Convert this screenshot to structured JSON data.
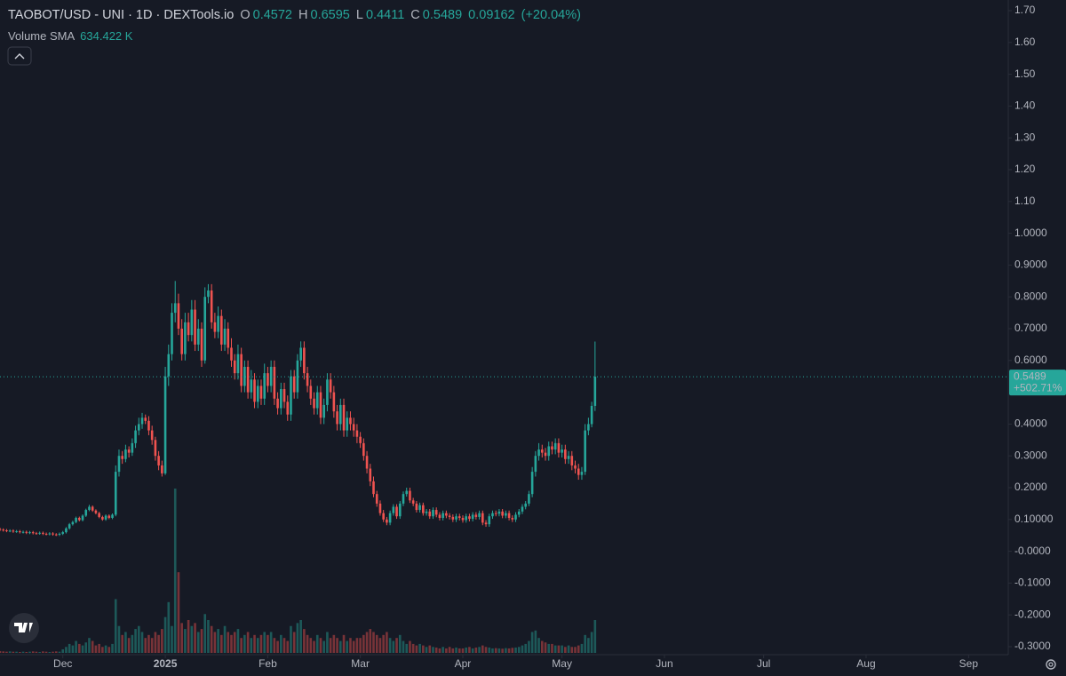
{
  "chart_data": {
    "type": "candlestick",
    "title": "TAOBOT/USD - UNI · 1D · DEXTools.io",
    "ohlc_labels": [
      "O",
      "H",
      "L",
      "C"
    ],
    "change": 0.09162,
    "change_label": "(+20.04%)",
    "volume_label": "Volume SMA",
    "volume_sma": "634.422 K",
    "price_change_label": "+502.71%",
    "up_color": "#26a69a",
    "down_color": "#ef5350",
    "xlim": [
      0,
      305
    ],
    "xticks": [
      {
        "value": 19,
        "label": "Dec"
      },
      {
        "value": 50,
        "label": "2025"
      },
      {
        "value": 81,
        "label": "Feb"
      },
      {
        "value": 109,
        "label": "Mar"
      },
      {
        "value": 140,
        "label": "Apr"
      },
      {
        "value": 170,
        "label": "May"
      },
      {
        "value": 201,
        "label": "Jun"
      },
      {
        "value": 231,
        "label": "Jul"
      },
      {
        "value": 262,
        "label": "Aug"
      },
      {
        "value": 293,
        "label": "Sep"
      }
    ],
    "ylim": [
      -0.3,
      1.7
    ],
    "yticks": [
      {
        "value": 1.7,
        "label": "1.70"
      },
      {
        "value": 1.6,
        "label": "1.60"
      },
      {
        "value": 1.5,
        "label": "1.50"
      },
      {
        "value": 1.4,
        "label": "1.40"
      },
      {
        "value": 1.3,
        "label": "1.30"
      },
      {
        "value": 1.2,
        "label": "1.20"
      },
      {
        "value": 1.1,
        "label": "1.10"
      },
      {
        "value": 1.0,
        "label": "1.0000"
      },
      {
        "value": 0.9,
        "label": "0.9000"
      },
      {
        "value": 0.8,
        "label": "0.8000"
      },
      {
        "value": 0.7,
        "label": "0.7000"
      },
      {
        "value": 0.6,
        "label": "0.6000"
      },
      {
        "value": 0.4,
        "label": "0.4000"
      },
      {
        "value": 0.3,
        "label": "0.3000"
      },
      {
        "value": 0.2,
        "label": "0.2000"
      },
      {
        "value": 0.1,
        "label": "0.10000"
      },
      {
        "value": 0,
        "label": "-0.0000"
      },
      {
        "value": -0.1,
        "label": "-0.1000"
      },
      {
        "value": -0.2,
        "label": "-0.2000"
      },
      {
        "value": -0.3,
        "label": "-0.3000"
      }
    ],
    "open": [
      0.07,
      0.068,
      0.066,
      0.064,
      0.065,
      0.062,
      0.063,
      0.06,
      0.061,
      0.058,
      0.06,
      0.057,
      0.056,
      0.058,
      0.055,
      0.054,
      0.056,
      0.053,
      0.052,
      0.055,
      0.06,
      0.072,
      0.085,
      0.092,
      0.105,
      0.098,
      0.112,
      0.13,
      0.14,
      0.128,
      0.12,
      0.108,
      0.1,
      0.112,
      0.105,
      0.115,
      0.25,
      0.3,
      0.29,
      0.32,
      0.31,
      0.34,
      0.38,
      0.4,
      0.42,
      0.41,
      0.38,
      0.35,
      0.3,
      0.27,
      0.245,
      0.55,
      0.62,
      0.75,
      0.78,
      0.7,
      0.62,
      0.72,
      0.68,
      0.76,
      0.65,
      0.7,
      0.6,
      0.8,
      0.82,
      0.72,
      0.69,
      0.74,
      0.65,
      0.7,
      0.64,
      0.6,
      0.56,
      0.62,
      0.52,
      0.58,
      0.5,
      0.54,
      0.47,
      0.52,
      0.48,
      0.56,
      0.52,
      0.58,
      0.48,
      0.45,
      0.51,
      0.47,
      0.43,
      0.55,
      0.5,
      0.6,
      0.64,
      0.56,
      0.52,
      0.48,
      0.45,
      0.5,
      0.42,
      0.46,
      0.54,
      0.5,
      0.44,
      0.4,
      0.46,
      0.38,
      0.42,
      0.4,
      0.38,
      0.36,
      0.34,
      0.3,
      0.26,
      0.22,
      0.18,
      0.15,
      0.12,
      0.1,
      0.09,
      0.12,
      0.14,
      0.11,
      0.15,
      0.18,
      0.19,
      0.16,
      0.15,
      0.13,
      0.145,
      0.12,
      0.125,
      0.11,
      0.13,
      0.115,
      0.105,
      0.12,
      0.112,
      0.108,
      0.1,
      0.11,
      0.105,
      0.098,
      0.11,
      0.102,
      0.115,
      0.108,
      0.12,
      0.09,
      0.085,
      0.11,
      0.12,
      0.118,
      0.125,
      0.112,
      0.12,
      0.105,
      0.1,
      0.115,
      0.125,
      0.14,
      0.15,
      0.18,
      0.25,
      0.3,
      0.32,
      0.31,
      0.3,
      0.33,
      0.32,
      0.34,
      0.31,
      0.32,
      0.29,
      0.3,
      0.27,
      0.26,
      0.24,
      0.25,
      0.38,
      0.4,
      0.4572
    ],
    "high": [
      0.074,
      0.072,
      0.07,
      0.069,
      0.069,
      0.067,
      0.067,
      0.065,
      0.065,
      0.064,
      0.064,
      0.061,
      0.062,
      0.062,
      0.059,
      0.06,
      0.06,
      0.057,
      0.059,
      0.064,
      0.076,
      0.089,
      0.096,
      0.109,
      0.109,
      0.116,
      0.134,
      0.146,
      0.144,
      0.132,
      0.124,
      0.112,
      0.116,
      0.116,
      0.119,
      0.27,
      0.32,
      0.315,
      0.335,
      0.33,
      0.355,
      0.395,
      0.42,
      0.435,
      0.43,
      0.425,
      0.395,
      0.36,
      0.315,
      0.285,
      0.58,
      0.65,
      0.78,
      0.85,
      0.81,
      0.73,
      0.75,
      0.75,
      0.79,
      0.79,
      0.73,
      0.72,
      0.83,
      0.84,
      0.84,
      0.75,
      0.77,
      0.76,
      0.73,
      0.72,
      0.67,
      0.62,
      0.65,
      0.64,
      0.6,
      0.6,
      0.57,
      0.56,
      0.54,
      0.54,
      0.59,
      0.58,
      0.6,
      0.6,
      0.5,
      0.53,
      0.53,
      0.49,
      0.57,
      0.57,
      0.62,
      0.66,
      0.66,
      0.58,
      0.54,
      0.5,
      0.52,
      0.52,
      0.48,
      0.56,
      0.56,
      0.52,
      0.46,
      0.48,
      0.48,
      0.44,
      0.44,
      0.42,
      0.4,
      0.375,
      0.355,
      0.315,
      0.275,
      0.235,
      0.19,
      0.16,
      0.13,
      0.108,
      0.128,
      0.148,
      0.148,
      0.158,
      0.188,
      0.2,
      0.2,
      0.168,
      0.158,
      0.153,
      0.153,
      0.133,
      0.133,
      0.138,
      0.138,
      0.123,
      0.128,
      0.128,
      0.12,
      0.116,
      0.118,
      0.118,
      0.113,
      0.118,
      0.118,
      0.123,
      0.123,
      0.128,
      0.128,
      0.098,
      0.118,
      0.128,
      0.128,
      0.133,
      0.133,
      0.128,
      0.128,
      0.113,
      0.123,
      0.133,
      0.148,
      0.158,
      0.19,
      0.265,
      0.315,
      0.34,
      0.335,
      0.325,
      0.345,
      0.345,
      0.355,
      0.355,
      0.335,
      0.335,
      0.315,
      0.315,
      0.285,
      0.275,
      0.265,
      0.4,
      0.42,
      0.47,
      0.6595
    ],
    "low": [
      0.064,
      0.062,
      0.06,
      0.06,
      0.058,
      0.058,
      0.056,
      0.056,
      0.054,
      0.054,
      0.053,
      0.052,
      0.052,
      0.051,
      0.05,
      0.05,
      0.049,
      0.048,
      0.048,
      0.051,
      0.056,
      0.068,
      0.081,
      0.088,
      0.094,
      0.094,
      0.108,
      0.126,
      0.124,
      0.116,
      0.104,
      0.096,
      0.096,
      0.101,
      0.101,
      0.11,
      0.235,
      0.275,
      0.28,
      0.295,
      0.3,
      0.325,
      0.365,
      0.385,
      0.4,
      0.365,
      0.335,
      0.285,
      0.255,
      0.235,
      0.24,
      0.52,
      0.6,
      0.72,
      0.68,
      0.6,
      0.6,
      0.66,
      0.66,
      0.63,
      0.63,
      0.58,
      0.59,
      0.78,
      0.7,
      0.67,
      0.67,
      0.63,
      0.63,
      0.62,
      0.58,
      0.54,
      0.54,
      0.5,
      0.5,
      0.48,
      0.48,
      0.45,
      0.45,
      0.46,
      0.46,
      0.5,
      0.5,
      0.46,
      0.43,
      0.43,
      0.45,
      0.41,
      0.41,
      0.48,
      0.48,
      0.58,
      0.54,
      0.5,
      0.46,
      0.43,
      0.43,
      0.4,
      0.4,
      0.44,
      0.48,
      0.42,
      0.38,
      0.38,
      0.36,
      0.36,
      0.38,
      0.36,
      0.34,
      0.325,
      0.285,
      0.245,
      0.205,
      0.17,
      0.14,
      0.112,
      0.092,
      0.082,
      0.082,
      0.112,
      0.102,
      0.102,
      0.142,
      0.172,
      0.152,
      0.142,
      0.122,
      0.122,
      0.112,
      0.112,
      0.102,
      0.102,
      0.107,
      0.097,
      0.097,
      0.104,
      0.1,
      0.092,
      0.092,
      0.097,
      0.09,
      0.09,
      0.094,
      0.094,
      0.1,
      0.1,
      0.082,
      0.077,
      0.077,
      0.102,
      0.11,
      0.11,
      0.104,
      0.104,
      0.097,
      0.092,
      0.092,
      0.107,
      0.117,
      0.132,
      0.142,
      0.17,
      0.235,
      0.285,
      0.295,
      0.285,
      0.285,
      0.305,
      0.305,
      0.295,
      0.295,
      0.275,
      0.275,
      0.255,
      0.245,
      0.225,
      0.225,
      0.24,
      0.365,
      0.39,
      0.4411
    ],
    "close": [
      0.068,
      0.066,
      0.064,
      0.065,
      0.062,
      0.063,
      0.06,
      0.061,
      0.058,
      0.06,
      0.057,
      0.056,
      0.058,
      0.055,
      0.054,
      0.056,
      0.053,
      0.052,
      0.055,
      0.06,
      0.072,
      0.085,
      0.092,
      0.105,
      0.098,
      0.112,
      0.13,
      0.14,
      0.128,
      0.12,
      0.108,
      0.1,
      0.112,
      0.105,
      0.115,
      0.25,
      0.3,
      0.29,
      0.32,
      0.31,
      0.34,
      0.38,
      0.4,
      0.42,
      0.41,
      0.38,
      0.35,
      0.3,
      0.27,
      0.245,
      0.55,
      0.62,
      0.75,
      0.78,
      0.7,
      0.62,
      0.72,
      0.68,
      0.76,
      0.65,
      0.7,
      0.6,
      0.8,
      0.82,
      0.72,
      0.69,
      0.74,
      0.65,
      0.7,
      0.64,
      0.6,
      0.56,
      0.62,
      0.52,
      0.58,
      0.5,
      0.54,
      0.47,
      0.52,
      0.48,
      0.56,
      0.52,
      0.58,
      0.48,
      0.45,
      0.51,
      0.47,
      0.43,
      0.55,
      0.5,
      0.6,
      0.64,
      0.56,
      0.52,
      0.48,
      0.45,
      0.5,
      0.42,
      0.46,
      0.54,
      0.5,
      0.44,
      0.4,
      0.46,
      0.38,
      0.42,
      0.4,
      0.38,
      0.36,
      0.34,
      0.3,
      0.26,
      0.22,
      0.18,
      0.15,
      0.12,
      0.1,
      0.09,
      0.12,
      0.14,
      0.11,
      0.15,
      0.18,
      0.19,
      0.16,
      0.15,
      0.13,
      0.145,
      0.12,
      0.125,
      0.11,
      0.13,
      0.115,
      0.105,
      0.12,
      0.112,
      0.108,
      0.1,
      0.11,
      0.105,
      0.098,
      0.11,
      0.102,
      0.115,
      0.108,
      0.12,
      0.09,
      0.085,
      0.11,
      0.12,
      0.118,
      0.125,
      0.112,
      0.12,
      0.105,
      0.1,
      0.115,
      0.125,
      0.14,
      0.15,
      0.18,
      0.25,
      0.3,
      0.32,
      0.31,
      0.3,
      0.33,
      0.32,
      0.34,
      0.31,
      0.32,
      0.29,
      0.3,
      0.27,
      0.26,
      0.24,
      0.25,
      0.38,
      0.4,
      0.4572,
      0.5489
    ],
    "volume": [
      60,
      50,
      40,
      50,
      40,
      40,
      30,
      40,
      30,
      40,
      50,
      40,
      30,
      50,
      40,
      30,
      40,
      50,
      40,
      120,
      200,
      300,
      250,
      400,
      300,
      250,
      350,
      500,
      400,
      250,
      300,
      200,
      250,
      200,
      300,
      1800,
      900,
      600,
      700,
      500,
      600,
      800,
      900,
      700,
      500,
      600,
      500,
      700,
      600,
      800,
      1200,
      1700,
      900,
      5500,
      2700,
      1000,
      800,
      1100,
      900,
      1000,
      700,
      800,
      1300,
      1100,
      900,
      700,
      800,
      600,
      900,
      700,
      600,
      700,
      800,
      500,
      600,
      700,
      500,
      600,
      500,
      600,
      700,
      600,
      700,
      500,
      400,
      600,
      500,
      400,
      900,
      700,
      1000,
      1100,
      800,
      600,
      500,
      400,
      600,
      500,
      400,
      700,
      500,
      600,
      500,
      400,
      600,
      400,
      500,
      400,
      500,
      500,
      600,
      700,
      800,
      700,
      600,
      500,
      600,
      700,
      500,
      400,
      500,
      600,
      400,
      300,
      400,
      300,
      250,
      300,
      250,
      200,
      250,
      200,
      180,
      150,
      200,
      150,
      200,
      150,
      180,
      150,
      150,
      180,
      200,
      150,
      180,
      200,
      250,
      200,
      180,
      150,
      160,
      150,
      140,
      160,
      150,
      170,
      180,
      200,
      250,
      300,
      400,
      700,
      750,
      500,
      400,
      350,
      300,
      300,
      250,
      250,
      250,
      200,
      250,
      200,
      200,
      250,
      300,
      600,
      500,
      700,
      1100
    ]
  }
}
